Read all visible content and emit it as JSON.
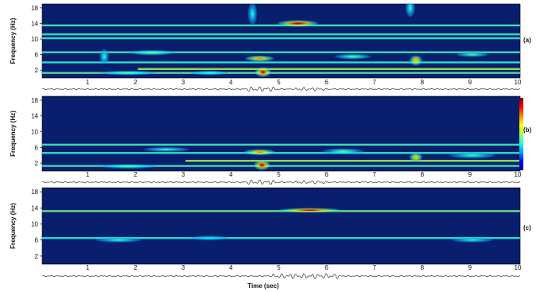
{
  "chart_data": [
    {
      "type": "heatmap",
      "panel_label": "(a)",
      "ylabel": "Frequency (Hz)",
      "xlabel": "",
      "xlim": [
        0,
        10
      ],
      "ylim": [
        0,
        19
      ],
      "xticks": [
        "1",
        "2",
        "3",
        "4",
        "5",
        "6",
        "7",
        "8",
        "9",
        "10"
      ],
      "yticks": [
        "2",
        "6",
        "10",
        "14",
        "18"
      ],
      "ytick_values": [
        2,
        6,
        10,
        14,
        18
      ],
      "bands": [
        {
          "y": 13.5,
          "x0": 0,
          "x1": 10,
          "intensity": 0.22
        },
        {
          "y": 11.2,
          "x0": 0,
          "x1": 10,
          "intensity": 0.2
        },
        {
          "y": 10.2,
          "x0": 0,
          "x1": 10,
          "intensity": 0.18
        },
        {
          "y": 6.6,
          "x0": 0,
          "x1": 10,
          "intensity": 0.22
        },
        {
          "y": 4.0,
          "x0": 0,
          "x1": 10,
          "intensity": 0.18
        },
        {
          "y": 2.3,
          "x0": 2.0,
          "x1": 10,
          "intensity": 0.45
        },
        {
          "y": 1.3,
          "x0": 0,
          "x1": 10,
          "intensity": 0.25
        }
      ],
      "blobs": [
        {
          "x": 5.35,
          "y": 14.0,
          "sx": 0.45,
          "sy": 0.9,
          "intensity": 1.0
        },
        {
          "x": 4.62,
          "y": 1.5,
          "sx": 0.18,
          "sy": 1.3,
          "intensity": 1.0
        },
        {
          "x": 4.55,
          "y": 5.0,
          "sx": 0.32,
          "sy": 0.8,
          "intensity": 0.75
        },
        {
          "x": 7.82,
          "y": 4.5,
          "sx": 0.14,
          "sy": 1.4,
          "intensity": 0.7
        },
        {
          "x": 2.3,
          "y": 6.5,
          "sx": 0.5,
          "sy": 0.7,
          "intensity": 0.35
        },
        {
          "x": 6.5,
          "y": 5.5,
          "sx": 0.4,
          "sy": 0.7,
          "intensity": 0.32
        },
        {
          "x": 9.0,
          "y": 6.0,
          "sx": 0.35,
          "sy": 0.6,
          "intensity": 0.3
        },
        {
          "x": 1.3,
          "y": 5.5,
          "sx": 0.1,
          "sy": 2.0,
          "intensity": 0.25
        },
        {
          "x": 7.7,
          "y": 18.0,
          "sx": 0.1,
          "sy": 2.5,
          "intensity": 0.25
        },
        {
          "x": 4.4,
          "y": 16.5,
          "sx": 0.1,
          "sy": 3.0,
          "intensity": 0.22
        },
        {
          "x": 1.8,
          "y": 1.3,
          "sx": 0.6,
          "sy": 0.5,
          "intensity": 0.3
        },
        {
          "x": 3.5,
          "y": 1.3,
          "sx": 0.4,
          "sy": 0.5,
          "intensity": 0.25
        }
      ]
    },
    {
      "type": "heatmap",
      "panel_label": "(b)",
      "ylabel": "Frequency (Hz)",
      "xlabel": "",
      "xlim": [
        0,
        10
      ],
      "ylim": [
        0,
        19
      ],
      "xticks": [
        "1",
        "2",
        "3",
        "4",
        "5",
        "6",
        "7",
        "8",
        "9",
        "10"
      ],
      "yticks": [
        "2",
        "6",
        "10",
        "14",
        "18"
      ],
      "ytick_values": [
        2,
        6,
        10,
        14,
        18
      ],
      "bands": [
        {
          "y": 6.7,
          "x0": 0,
          "x1": 10,
          "intensity": 0.22
        },
        {
          "y": 4.6,
          "x0": 0,
          "x1": 10,
          "intensity": 0.18
        },
        {
          "y": 2.6,
          "x0": 3.0,
          "x1": 10,
          "intensity": 0.4
        },
        {
          "y": 1.3,
          "x0": 0,
          "x1": 10,
          "intensity": 0.22
        }
      ],
      "blobs": [
        {
          "x": 4.6,
          "y": 1.5,
          "sx": 0.18,
          "sy": 1.3,
          "intensity": 1.0
        },
        {
          "x": 4.55,
          "y": 4.8,
          "sx": 0.35,
          "sy": 0.8,
          "intensity": 0.75
        },
        {
          "x": 7.82,
          "y": 3.5,
          "sx": 0.14,
          "sy": 1.2,
          "intensity": 0.68
        },
        {
          "x": 1.8,
          "y": 1.2,
          "sx": 0.6,
          "sy": 0.5,
          "intensity": 0.3
        },
        {
          "x": 6.3,
          "y": 5.0,
          "sx": 0.45,
          "sy": 0.8,
          "intensity": 0.3
        },
        {
          "x": 9.0,
          "y": 4.0,
          "sx": 0.5,
          "sy": 0.8,
          "intensity": 0.25
        },
        {
          "x": 2.6,
          "y": 5.5,
          "sx": 0.5,
          "sy": 0.6,
          "intensity": 0.25
        }
      ]
    },
    {
      "type": "heatmap",
      "panel_label": "(c)",
      "ylabel": "Frequency (Hz)",
      "xlabel": "Time (sec)",
      "xlim": [
        0,
        10
      ],
      "ylim": [
        0,
        19
      ],
      "xticks": [
        "1",
        "2",
        "3",
        "4",
        "5",
        "6",
        "7",
        "8",
        "9",
        "10"
      ],
      "yticks": [
        "2",
        "6",
        "10",
        "14",
        "18"
      ],
      "ytick_values": [
        2,
        6,
        10,
        14,
        18
      ],
      "bands": [
        {
          "y": 13.2,
          "x0": 0,
          "x1": 10,
          "intensity": 0.3
        },
        {
          "y": 6.5,
          "x0": 0,
          "x1": 10,
          "intensity": 0.15
        }
      ],
      "blobs": [
        {
          "x": 5.6,
          "y": 13.4,
          "sx": 0.7,
          "sy": 0.35,
          "intensity": 1.0
        },
        {
          "x": 1.6,
          "y": 6.0,
          "sx": 0.5,
          "sy": 0.6,
          "intensity": 0.25
        },
        {
          "x": 9.0,
          "y": 6.0,
          "sx": 0.45,
          "sy": 0.5,
          "intensity": 0.22
        },
        {
          "x": 3.5,
          "y": 6.5,
          "sx": 0.4,
          "sy": 0.5,
          "intensity": 0.18
        }
      ]
    }
  ],
  "colorbar": {
    "colors": [
      "#1a0090",
      "#0000ff",
      "#00a0ff",
      "#20ffe0",
      "#a0ff50",
      "#ffff00",
      "#ff8800",
      "#ff0000",
      "#7a0000"
    ]
  },
  "colors": {
    "background": "#0a1e6e",
    "trace": "#333333"
  }
}
